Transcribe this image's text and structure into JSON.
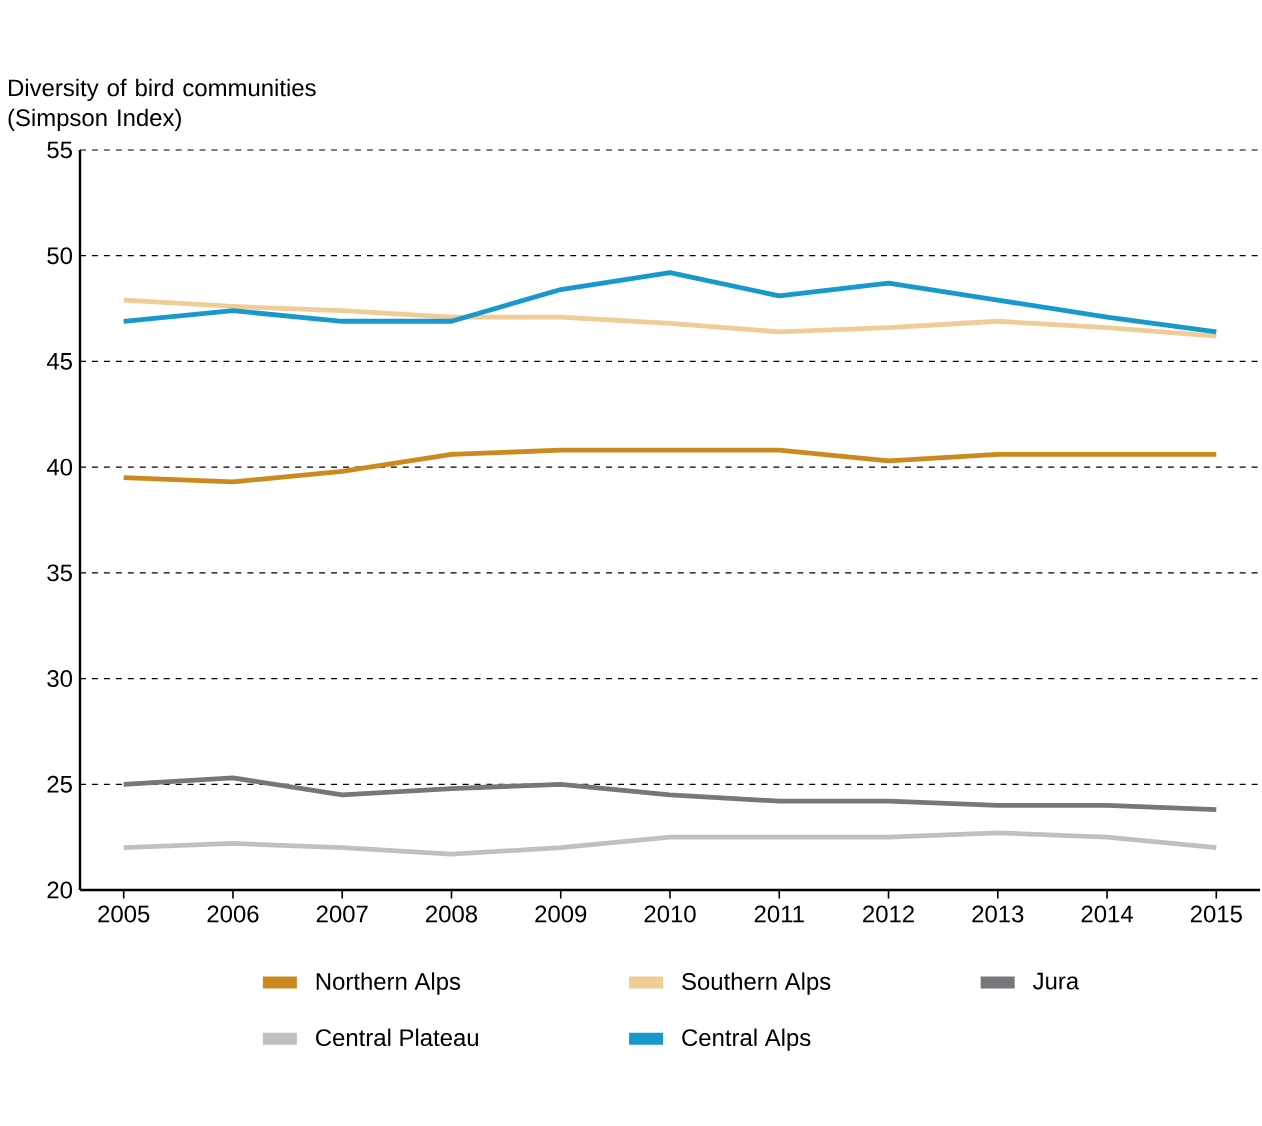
{
  "chart_data": {
    "type": "line",
    "ylabel": "Diversity of bird communities (Simpson Index)",
    "x": [
      2005,
      2006,
      2007,
      2008,
      2009,
      2010,
      2011,
      2012,
      2013,
      2014,
      2015
    ],
    "xlim": [
      2004.6,
      2015.4
    ],
    "xticks": [
      2005,
      2006,
      2007,
      2008,
      2009,
      2010,
      2011,
      2012,
      2013,
      2014,
      2015
    ],
    "ylim": [
      20,
      55
    ],
    "yticks": [
      20,
      25,
      30,
      35,
      40,
      45,
      50,
      55
    ],
    "grid": "y",
    "legend": "bottom",
    "line_style": "solid",
    "series": [
      {
        "name": "Northern Alps",
        "color": "#cc8a1e",
        "values": [
          39.5,
          39.3,
          39.8,
          40.6,
          40.8,
          40.8,
          40.8,
          40.3,
          40.6,
          40.6,
          40.6
        ]
      },
      {
        "name": "Southern Alps",
        "color": "#f0cc96",
        "values": [
          47.9,
          47.6,
          47.4,
          47.1,
          47.1,
          46.8,
          46.4,
          46.6,
          46.9,
          46.6,
          46.2
        ]
      },
      {
        "name": "Jura",
        "color": "#77777b",
        "values": [
          25.0,
          25.3,
          24.5,
          24.8,
          25.0,
          24.5,
          24.2,
          24.2,
          24.0,
          24.0,
          23.8
        ]
      },
      {
        "name": "Central Plateau",
        "color": "#c0c0c2",
        "values": [
          22.0,
          22.2,
          22.0,
          21.7,
          22.0,
          22.5,
          22.5,
          22.5,
          22.7,
          22.5,
          22.0
        ]
      },
      {
        "name": "Central Alps",
        "color": "#1799cc",
        "values": [
          46.9,
          47.4,
          46.9,
          46.9,
          48.4,
          49.2,
          48.1,
          48.7,
          47.9,
          47.1,
          46.4
        ]
      }
    ]
  }
}
